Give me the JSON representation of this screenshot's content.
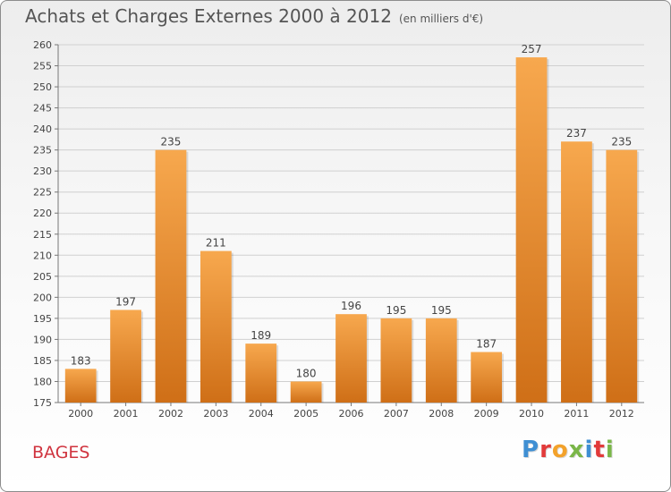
{
  "title": "Achats et Charges Externes 2000 à 2012",
  "subtitle": "(en milliers d'€)",
  "commune": "BAGES",
  "logo": {
    "text": "Proxiti",
    "colors": [
      "#3f8fd3",
      "#e23a3a",
      "#f3a22b",
      "#7ab648",
      "#3f8fd3",
      "#e23a3a",
      "#7ab648"
    ]
  },
  "chart_data": {
    "type": "bar",
    "categories": [
      "2000",
      "2001",
      "2002",
      "2003",
      "2004",
      "2005",
      "2006",
      "2007",
      "2008",
      "2009",
      "2010",
      "2011",
      "2012"
    ],
    "values": [
      183,
      197,
      235,
      211,
      189,
      180,
      196,
      195,
      195,
      187,
      257,
      237,
      235
    ],
    "ylim": [
      175,
      260
    ],
    "ytick_step": 5,
    "grid": true,
    "bar_color_top": "#f7a84e",
    "bar_color_bottom": "#cf6f17",
    "title": "Achats et Charges Externes 2000 à 2012",
    "xlabel": "",
    "ylabel": ""
  }
}
